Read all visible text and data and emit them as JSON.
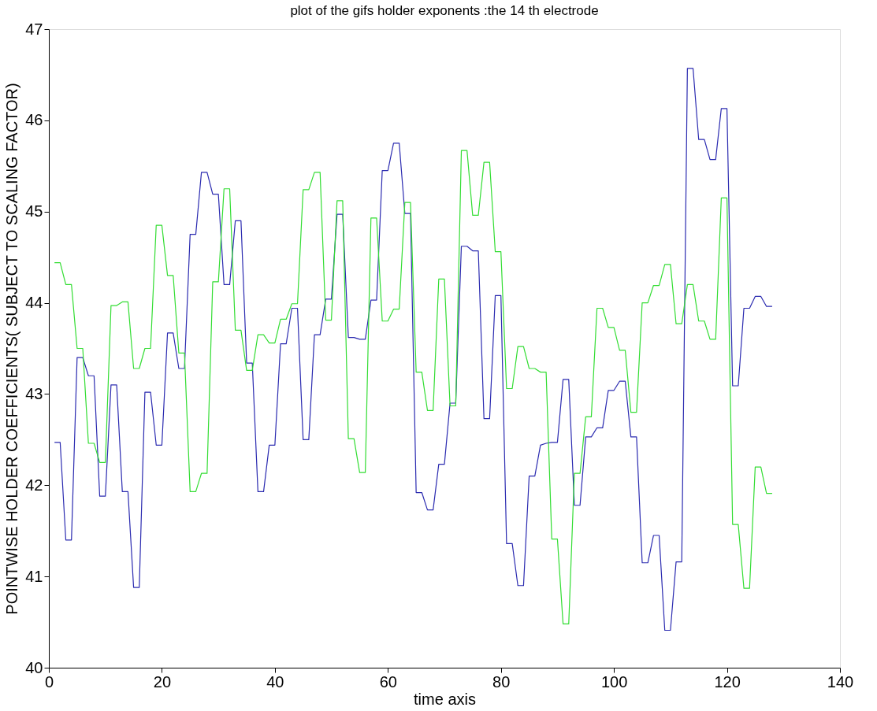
{
  "chart_data": {
    "type": "line",
    "title": "plot of the gifs holder exponents :the 14 th electrode",
    "xlabel": "time axis",
    "ylabel": "POINTWISE HOLDER COEFFICIENTS( SUBJECT TO SCALING FACTOR)",
    "x": [
      1,
      2,
      3,
      4,
      5,
      6,
      7,
      8,
      9,
      10,
      11,
      12,
      13,
      14,
      15,
      16,
      17,
      18,
      19,
      20,
      21,
      22,
      23,
      24,
      25,
      26,
      27,
      28,
      29,
      30,
      31,
      32,
      33,
      34,
      35,
      36,
      37,
      38,
      39,
      40,
      41,
      42,
      43,
      44,
      45,
      46,
      47,
      48,
      49,
      50,
      51,
      52,
      53,
      54,
      55,
      56,
      57,
      58,
      59,
      60,
      61,
      62,
      63,
      64,
      65,
      66,
      67,
      68,
      69,
      70,
      71,
      72,
      73,
      74,
      75,
      76,
      77,
      78,
      79,
      80,
      81,
      82,
      83,
      84,
      85,
      86,
      87,
      88,
      89,
      90,
      91,
      92,
      93,
      94,
      95,
      96,
      97,
      98,
      99,
      100,
      101,
      102,
      103,
      104,
      105,
      106,
      107,
      108,
      109,
      110,
      111,
      112,
      113,
      114,
      115,
      116,
      117,
      118,
      119,
      120,
      121,
      122,
      123,
      124,
      125,
      126,
      127,
      128
    ],
    "series": [
      {
        "color": "#2b2bb0",
        "values": [
          42.47,
          42.47,
          41.4,
          41.4,
          43.4,
          43.4,
          43.2,
          43.2,
          41.88,
          41.88,
          43.1,
          43.1,
          41.93,
          41.93,
          40.88,
          40.88,
          43.02,
          43.02,
          42.44,
          42.44,
          43.67,
          43.67,
          43.28,
          43.28,
          44.75,
          44.75,
          45.43,
          45.43,
          45.19,
          45.19,
          44.2,
          44.2,
          44.9,
          44.9,
          43.34,
          43.34,
          41.93,
          41.93,
          42.44,
          42.44,
          43.55,
          43.55,
          43.94,
          43.94,
          42.5,
          42.5,
          43.65,
          43.65,
          44.04,
          44.04,
          44.97,
          44.97,
          43.62,
          43.62,
          43.6,
          43.6,
          44.03,
          44.03,
          45.45,
          45.45,
          45.75,
          45.75,
          44.98,
          44.98,
          41.92,
          41.92,
          41.73,
          41.73,
          42.23,
          42.23,
          42.9,
          42.9,
          44.62,
          44.62,
          44.57,
          44.57,
          42.73,
          42.73,
          44.08,
          44.08,
          41.36,
          41.36,
          40.9,
          40.9,
          42.1,
          42.1,
          42.44,
          42.46,
          42.47,
          42.47,
          43.16,
          43.16,
          41.78,
          41.78,
          42.53,
          42.53,
          42.63,
          42.63,
          43.04,
          43.04,
          43.14,
          43.14,
          42.53,
          42.53,
          41.15,
          41.15,
          41.45,
          41.45,
          40.41,
          40.41,
          41.16,
          41.16,
          46.57,
          46.57,
          45.79,
          45.79,
          45.57,
          45.57,
          46.13,
          46.13,
          43.09,
          43.09,
          43.94,
          43.94,
          44.07,
          44.07,
          43.96,
          43.96
        ]
      },
      {
        "color": "#33dd33",
        "values": [
          44.44,
          44.44,
          44.2,
          44.2,
          43.5,
          43.5,
          42.46,
          42.46,
          42.25,
          42.25,
          43.97,
          43.97,
          44.01,
          44.01,
          43.28,
          43.28,
          43.5,
          43.5,
          44.85,
          44.85,
          44.3,
          44.3,
          43.45,
          43.45,
          41.93,
          41.93,
          42.13,
          42.13,
          44.23,
          44.23,
          45.25,
          45.25,
          43.7,
          43.7,
          43.26,
          43.26,
          43.65,
          43.65,
          43.56,
          43.56,
          43.82,
          43.82,
          43.99,
          43.99,
          45.24,
          45.24,
          45.43,
          45.43,
          43.81,
          43.81,
          45.12,
          45.12,
          42.51,
          42.51,
          42.14,
          42.14,
          44.93,
          44.93,
          43.8,
          43.8,
          43.93,
          43.93,
          45.1,
          45.1,
          43.24,
          43.24,
          42.82,
          42.82,
          44.26,
          44.26,
          42.87,
          42.87,
          45.67,
          45.67,
          44.96,
          44.96,
          45.54,
          45.54,
          44.56,
          44.56,
          43.06,
          43.06,
          43.52,
          43.52,
          43.28,
          43.28,
          43.24,
          43.24,
          41.41,
          41.41,
          40.48,
          40.48,
          42.13,
          42.13,
          42.75,
          42.75,
          43.94,
          43.94,
          43.73,
          43.73,
          43.48,
          43.48,
          42.8,
          42.8,
          44.0,
          44.0,
          44.19,
          44.19,
          44.42,
          44.42,
          43.77,
          43.77,
          44.2,
          44.2,
          43.8,
          43.8,
          43.6,
          43.6,
          45.15,
          45.15,
          41.57,
          41.57,
          40.87,
          40.87,
          42.2,
          42.2,
          41.91,
          41.91
        ]
      }
    ],
    "xlim": [
      0,
      140
    ],
    "xticks": [
      0,
      20,
      40,
      60,
      80,
      100,
      120,
      140
    ],
    "ylim": [
      40,
      47
    ],
    "yticks": [
      40,
      41,
      42,
      43,
      44,
      45,
      46,
      47
    ],
    "grid": false,
    "legend": false,
    "line_style": "solid",
    "marker": "none"
  }
}
